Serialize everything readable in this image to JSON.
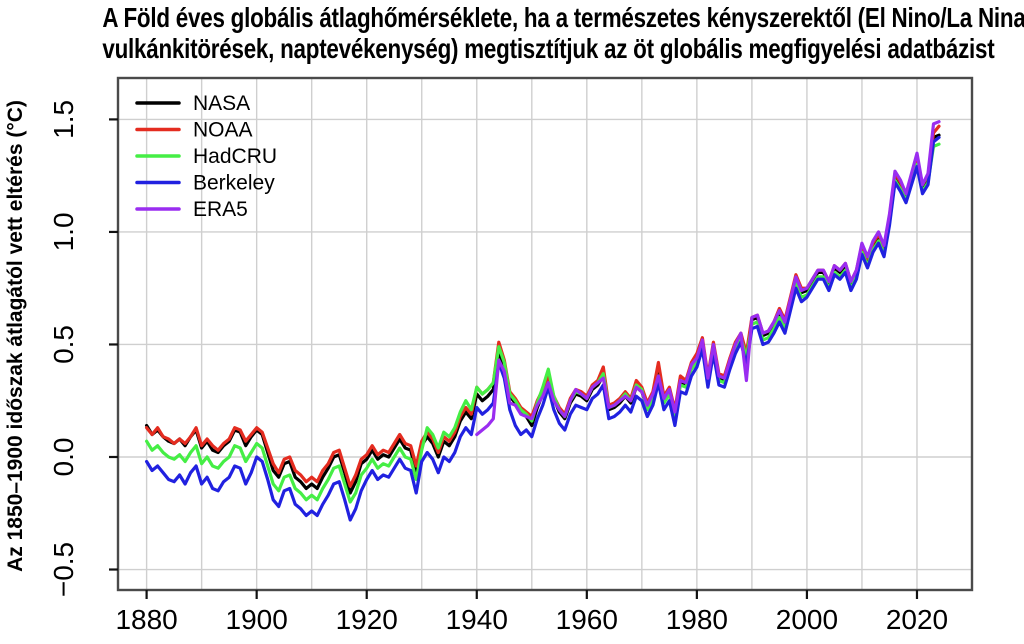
{
  "title": {
    "line1": "A Föld éves globális átlaghőmérséklete, ha a természetes kényszerektől (El Nino/La Nina,",
    "line2": "vulkánkitörések, naptevékenység) megtisztítjuk az öt globális megfigyelési adatbázist"
  },
  "chart": {
    "y_axis_label": "Az 1850–1900 időszak átlagától vett eltérés (°C)",
    "x_tick_labels": [
      "1880",
      "1900",
      "1920",
      "1940",
      "1960",
      "1980",
      "2000",
      "2020"
    ],
    "y_tick_labels": [
      "−0.5",
      "0.0",
      "0.5",
      "1.0",
      "1.5"
    ]
  },
  "style": {
    "background": "#ffffff",
    "grid_color": "#cfcfcf",
    "box_color": "#4a4a4a",
    "tick_color": "#111111",
    "text_color": "#000000"
  },
  "chart_data": {
    "type": "line",
    "title": "A Föld éves globális átlaghőmérséklete, ha a természetes kényszerektől (El Nino/La Nina, vulkánkitörések, naptevékenység) megtisztítjuk az öt globális megfigyelési adatbázist",
    "xlabel": "",
    "ylabel": "Az 1850–1900 időszak átlagától vett eltérés (°C)",
    "grid": true,
    "legend_position": "top-left",
    "xlim": [
      1874.8,
      2030
    ],
    "ylim": [
      -0.591,
      1.684
    ],
    "x_ticks": [
      1880,
      1900,
      1920,
      1940,
      1960,
      1980,
      2000,
      2020
    ],
    "y_ticks": [
      -0.5,
      0.0,
      0.5,
      1.0,
      1.5
    ],
    "x_gridline_step": 10,
    "x_range": [
      1880,
      2024
    ],
    "series": [
      {
        "name": "NASA",
        "color": "#000000",
        "start_year": 1880,
        "values": [
          0.14,
          0.1,
          0.12,
          0.09,
          0.07,
          0.06,
          0.08,
          0.05,
          0.09,
          0.12,
          0.04,
          0.07,
          0.03,
          0.02,
          0.05,
          0.07,
          0.12,
          0.11,
          0.05,
          0.09,
          0.12,
          0.1,
          0.02,
          -0.06,
          -0.09,
          -0.03,
          -0.02,
          -0.09,
          -0.11,
          -0.14,
          -0.12,
          -0.14,
          -0.09,
          -0.05,
          0.0,
          0.01,
          -0.07,
          -0.16,
          -0.11,
          -0.03,
          -0.01,
          0.03,
          -0.01,
          0.01,
          0.0,
          0.04,
          0.08,
          0.04,
          0.03,
          -0.07,
          0.05,
          0.09,
          0.06,
          0.0,
          0.07,
          0.05,
          0.09,
          0.16,
          0.2,
          0.17,
          0.28,
          0.25,
          0.27,
          0.3,
          0.47,
          0.4,
          0.27,
          0.24,
          0.2,
          0.18,
          0.14,
          0.22,
          0.28,
          0.35,
          0.26,
          0.2,
          0.17,
          0.24,
          0.28,
          0.27,
          0.25,
          0.3,
          0.32,
          0.36,
          0.21,
          0.22,
          0.24,
          0.27,
          0.24,
          0.31,
          0.29,
          0.22,
          0.27,
          0.37,
          0.25,
          0.29,
          0.18,
          0.33,
          0.32,
          0.4,
          0.43,
          0.51,
          0.34,
          0.49,
          0.35,
          0.34,
          0.42,
          0.49,
          0.54,
          0.45,
          0.61,
          0.62,
          0.54,
          0.55,
          0.59,
          0.64,
          0.59,
          0.69,
          0.79,
          0.73,
          0.74,
          0.78,
          0.82,
          0.82,
          0.77,
          0.84,
          0.82,
          0.85,
          0.77,
          0.82,
          0.93,
          0.87,
          0.94,
          0.98,
          0.92,
          1.06,
          1.25,
          1.21,
          1.16,
          1.24,
          1.32,
          1.2,
          1.24,
          1.42,
          1.43
        ]
      },
      {
        "name": "NOAA",
        "color": "#e42c20",
        "start_year": 1880,
        "values": [
          0.13,
          0.1,
          0.13,
          0.09,
          0.08,
          0.06,
          0.08,
          0.06,
          0.09,
          0.13,
          0.05,
          0.08,
          0.05,
          0.03,
          0.06,
          0.08,
          0.13,
          0.12,
          0.07,
          0.1,
          0.13,
          0.11,
          0.04,
          -0.03,
          -0.07,
          -0.01,
          0.0,
          -0.06,
          -0.08,
          -0.11,
          -0.09,
          -0.11,
          -0.06,
          -0.03,
          0.02,
          0.03,
          -0.05,
          -0.13,
          -0.08,
          -0.01,
          0.01,
          0.05,
          0.01,
          0.03,
          0.02,
          0.06,
          0.1,
          0.06,
          0.05,
          -0.04,
          0.07,
          0.11,
          0.08,
          0.02,
          0.09,
          0.07,
          0.11,
          0.18,
          0.22,
          0.19,
          0.31,
          0.28,
          0.3,
          0.33,
          0.51,
          0.43,
          0.29,
          0.26,
          0.22,
          0.2,
          0.18,
          0.25,
          0.3,
          0.36,
          0.27,
          0.22,
          0.19,
          0.26,
          0.3,
          0.29,
          0.27,
          0.32,
          0.34,
          0.4,
          0.23,
          0.24,
          0.26,
          0.29,
          0.26,
          0.34,
          0.31,
          0.24,
          0.29,
          0.42,
          0.27,
          0.31,
          0.21,
          0.36,
          0.34,
          0.42,
          0.46,
          0.53,
          0.36,
          0.51,
          0.37,
          0.36,
          0.44,
          0.51,
          0.55,
          0.46,
          0.62,
          0.63,
          0.55,
          0.56,
          0.6,
          0.66,
          0.61,
          0.71,
          0.81,
          0.75,
          0.75,
          0.79,
          0.83,
          0.83,
          0.78,
          0.85,
          0.83,
          0.86,
          0.78,
          0.83,
          0.94,
          0.88,
          0.95,
          0.99,
          0.93,
          1.07,
          1.26,
          1.22,
          1.17,
          1.25,
          1.33,
          1.21,
          1.25,
          1.44,
          1.47
        ]
      },
      {
        "name": "HadCRU",
        "color": "#45ee45",
        "start_year": 1880,
        "values": [
          0.07,
          0.03,
          0.05,
          0.02,
          0.0,
          -0.01,
          0.01,
          -0.02,
          0.02,
          0.05,
          -0.03,
          0.0,
          -0.04,
          -0.05,
          -0.02,
          0.0,
          0.05,
          0.04,
          -0.02,
          0.02,
          0.06,
          0.04,
          -0.04,
          -0.12,
          -0.15,
          -0.09,
          -0.08,
          -0.14,
          -0.16,
          -0.19,
          -0.17,
          -0.19,
          -0.14,
          -0.1,
          -0.05,
          -0.04,
          -0.12,
          -0.2,
          -0.16,
          -0.08,
          -0.05,
          -0.01,
          -0.05,
          -0.03,
          -0.04,
          0.0,
          0.04,
          0.0,
          -0.01,
          -0.1,
          0.03,
          0.13,
          0.1,
          0.04,
          0.11,
          0.09,
          0.13,
          0.2,
          0.25,
          0.21,
          0.31,
          0.28,
          0.3,
          0.33,
          0.49,
          0.42,
          0.28,
          0.25,
          0.21,
          0.19,
          0.16,
          0.24,
          0.31,
          0.39,
          0.27,
          0.21,
          0.18,
          0.25,
          0.29,
          0.28,
          0.26,
          0.31,
          0.33,
          0.37,
          0.22,
          0.23,
          0.25,
          0.28,
          0.25,
          0.32,
          0.3,
          0.21,
          0.26,
          0.36,
          0.24,
          0.28,
          0.17,
          0.32,
          0.31,
          0.39,
          0.42,
          0.5,
          0.33,
          0.48,
          0.34,
          0.33,
          0.41,
          0.48,
          0.53,
          0.44,
          0.59,
          0.6,
          0.52,
          0.53,
          0.57,
          0.62,
          0.57,
          0.67,
          0.77,
          0.71,
          0.72,
          0.76,
          0.8,
          0.8,
          0.75,
          0.82,
          0.8,
          0.83,
          0.75,
          0.8,
          0.91,
          0.85,
          0.92,
          0.96,
          0.9,
          1.04,
          1.23,
          1.19,
          1.14,
          1.22,
          1.3,
          1.18,
          1.22,
          1.38,
          1.39
        ]
      },
      {
        "name": "Berkeley",
        "color": "#2121e0",
        "start_year": 1880,
        "values": [
          -0.02,
          -0.06,
          -0.04,
          -0.07,
          -0.1,
          -0.11,
          -0.08,
          -0.12,
          -0.07,
          -0.04,
          -0.12,
          -0.09,
          -0.14,
          -0.15,
          -0.11,
          -0.09,
          -0.04,
          -0.05,
          -0.12,
          -0.07,
          0.0,
          -0.02,
          -0.1,
          -0.19,
          -0.22,
          -0.15,
          -0.14,
          -0.21,
          -0.23,
          -0.26,
          -0.24,
          -0.26,
          -0.21,
          -0.17,
          -0.12,
          -0.11,
          -0.19,
          -0.28,
          -0.23,
          -0.15,
          -0.1,
          -0.06,
          -0.1,
          -0.08,
          -0.09,
          -0.05,
          -0.01,
          -0.05,
          -0.06,
          -0.16,
          -0.02,
          0.02,
          -0.01,
          -0.07,
          0.0,
          -0.02,
          0.02,
          0.09,
          0.13,
          0.1,
          0.22,
          0.19,
          0.21,
          0.24,
          0.42,
          0.35,
          0.21,
          0.14,
          0.1,
          0.12,
          0.09,
          0.17,
          0.23,
          0.31,
          0.21,
          0.15,
          0.12,
          0.19,
          0.23,
          0.22,
          0.21,
          0.26,
          0.28,
          0.32,
          0.17,
          0.18,
          0.2,
          0.23,
          0.2,
          0.27,
          0.25,
          0.18,
          0.23,
          0.33,
          0.21,
          0.25,
          0.14,
          0.29,
          0.28,
          0.36,
          0.4,
          0.48,
          0.31,
          0.46,
          0.32,
          0.31,
          0.39,
          0.46,
          0.51,
          0.41,
          0.57,
          0.58,
          0.5,
          0.51,
          0.55,
          0.6,
          0.55,
          0.65,
          0.75,
          0.69,
          0.71,
          0.75,
          0.79,
          0.79,
          0.74,
          0.81,
          0.79,
          0.82,
          0.74,
          0.79,
          0.9,
          0.84,
          0.91,
          0.95,
          0.89,
          1.03,
          1.22,
          1.18,
          1.13,
          1.21,
          1.29,
          1.17,
          1.21,
          1.4,
          1.42
        ]
      },
      {
        "name": "ERA5",
        "color": "#9a2df0",
        "start_year": 1940,
        "values": [
          0.1,
          0.12,
          0.14,
          0.17,
          0.43,
          0.38,
          0.24,
          0.23,
          0.19,
          0.18,
          0.17,
          0.23,
          0.27,
          0.33,
          0.25,
          0.21,
          0.18,
          0.25,
          0.3,
          0.28,
          0.26,
          0.31,
          0.33,
          0.35,
          0.22,
          0.23,
          0.25,
          0.27,
          0.25,
          0.31,
          0.29,
          0.23,
          0.28,
          0.36,
          0.26,
          0.3,
          0.2,
          0.34,
          0.33,
          0.41,
          0.44,
          0.52,
          0.35,
          0.5,
          0.36,
          0.35,
          0.43,
          0.5,
          0.55,
          0.34,
          0.62,
          0.63,
          0.55,
          0.56,
          0.6,
          0.65,
          0.6,
          0.7,
          0.8,
          0.74,
          0.75,
          0.79,
          0.83,
          0.83,
          0.78,
          0.85,
          0.83,
          0.86,
          0.78,
          0.83,
          0.95,
          0.89,
          0.96,
          1.0,
          0.94,
          1.08,
          1.27,
          1.23,
          1.17,
          1.26,
          1.35,
          1.21,
          1.26,
          1.48,
          1.49
        ]
      }
    ]
  }
}
